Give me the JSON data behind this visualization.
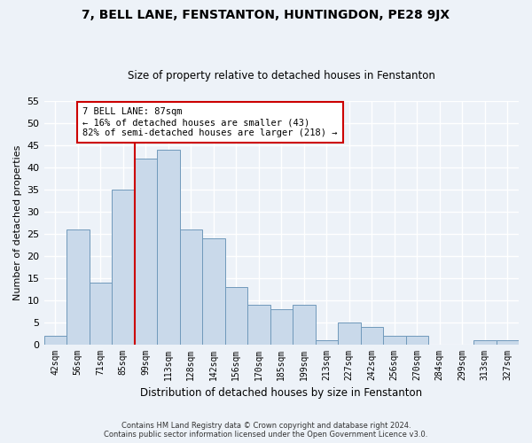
{
  "title": "7, BELL LANE, FENSTANTON, HUNTINGDON, PE28 9JX",
  "subtitle": "Size of property relative to detached houses in Fenstanton",
  "xlabel": "Distribution of detached houses by size in Fenstanton",
  "ylabel": "Number of detached properties",
  "bin_labels": [
    "42sqm",
    "56sqm",
    "71sqm",
    "85sqm",
    "99sqm",
    "113sqm",
    "128sqm",
    "142sqm",
    "156sqm",
    "170sqm",
    "185sqm",
    "199sqm",
    "213sqm",
    "227sqm",
    "242sqm",
    "256sqm",
    "270sqm",
    "284sqm",
    "299sqm",
    "313sqm",
    "327sqm"
  ],
  "bar_heights": [
    2,
    26,
    14,
    35,
    42,
    44,
    26,
    24,
    13,
    9,
    8,
    9,
    1,
    5,
    4,
    2,
    2,
    0,
    0,
    1,
    1
  ],
  "bar_color": "#c9d9ea",
  "bar_edge_color": "#7099bb",
  "highlight_line_color": "#cc0000",
  "highlight_line_index": 4,
  "annotation_title": "7 BELL LANE: 87sqm",
  "annotation_line1": "← 16% of detached houses are smaller (43)",
  "annotation_line2": "82% of semi-detached houses are larger (218) →",
  "annotation_box_color": "#ffffff",
  "annotation_box_edge": "#cc0000",
  "ylim": [
    0,
    55
  ],
  "yticks": [
    0,
    5,
    10,
    15,
    20,
    25,
    30,
    35,
    40,
    45,
    50,
    55
  ],
  "footer_line1": "Contains HM Land Registry data © Crown copyright and database right 2024.",
  "footer_line2": "Contains public sector information licensed under the Open Government Licence v3.0.",
  "background_color": "#edf2f8",
  "grid_color": "#ffffff",
  "title_fontsize": 10,
  "subtitle_fontsize": 8.5,
  "ylabel_fontsize": 8,
  "xlabel_fontsize": 8.5,
  "tick_fontsize": 7,
  "footer_fontsize": 6,
  "annot_fontsize": 7.5
}
